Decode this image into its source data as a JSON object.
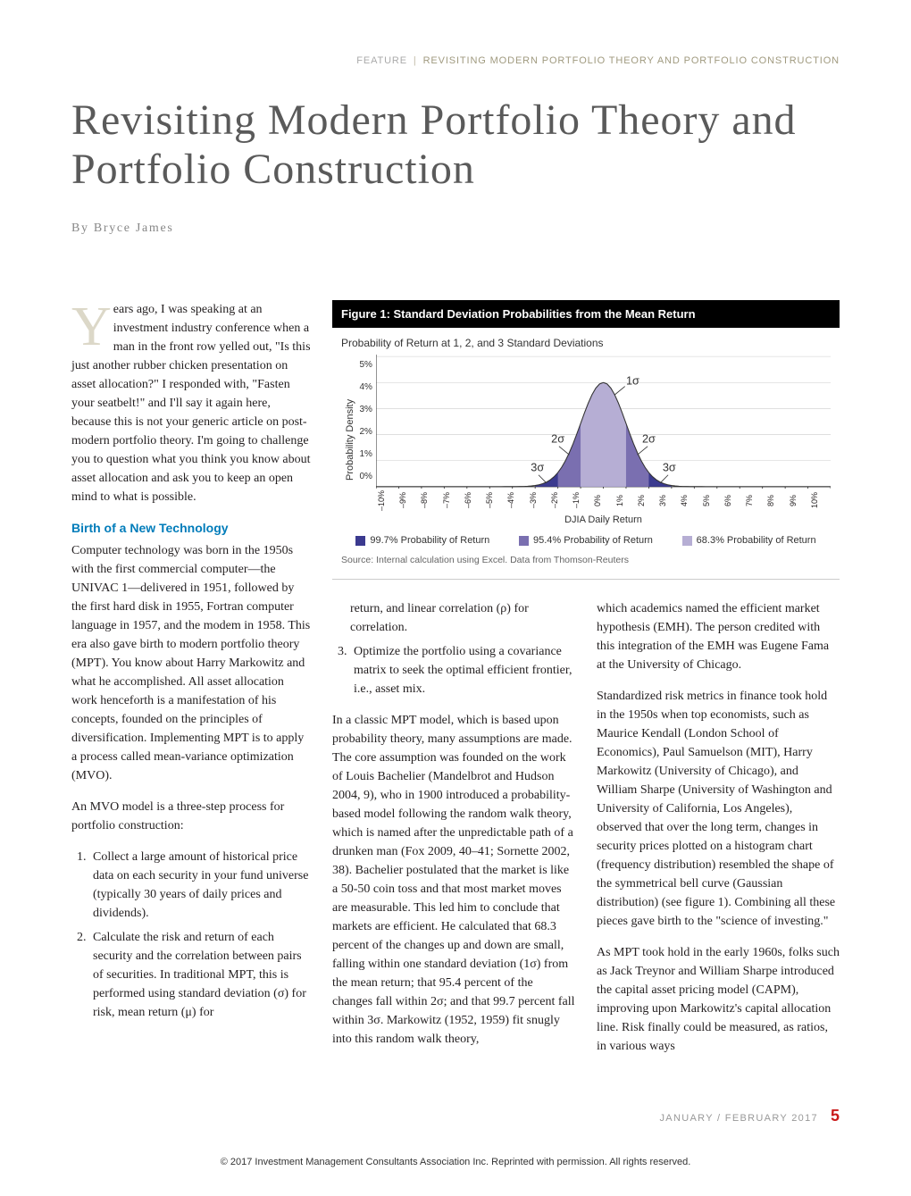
{
  "header": {
    "feature_label": "FEATURE",
    "section_title": "REVISITING MODERN PORTFOLIO THEORY  AND PORTFOLIO CONSTRUCTION"
  },
  "title": "Revisiting Modern Portfolio Theory and Portfolio Construction",
  "byline": "By Bryce James",
  "intro": {
    "dropcap": "Y",
    "text": "ears ago, I was speaking at an investment industry conference when a man in the front row yelled out, \"Is this just another rubber chicken presentation on asset allocation?\" I responded with, \"Fasten your seatbelt!\" and I'll say it again here, because this is not your generic article on post-modern portfolio theory. I'm going to challenge you to question what you think you know about asset allocation and ask you to keep an open mind to what is possible."
  },
  "section_birth_header": "Birth of a New Technology",
  "p_birth": "Computer technology was born in the 1950s with the first commercial computer—the UNIVAC 1—delivered in 1951, followed by the first hard disk in 1955, Fortran computer language in 1957, and the modem in 1958. This era also gave birth to modern portfolio theory (MPT). You know about Harry Markowitz and what he accomplished. All asset allocation work henceforth is a manifestation of his concepts, founded on the principles of diversification. Implementing MPT is to apply a process called mean-variance optimization (MVO).",
  "p_mvo_intro": "An MVO model is a three-step process for portfolio construction:",
  "steps": [
    "Collect a large amount of historical price data on each security in your fund universe (typically 30 years of daily prices and dividends).",
    "Calculate the risk and return of each security and the correlation between pairs of securities. In traditional MPT, this is performed using standard deviation (σ) for risk, mean return (μ) for"
  ],
  "steps_col2": [
    "return, and linear correlation (ρ) for correlation.",
    "Optimize the portfolio using a covariance matrix to seek the optimal efficient frontier, i.e., asset mix."
  ],
  "steps_col2_start": 3,
  "p_classic": "In a classic MPT model, which is based upon probability theory, many assumptions are made. The core assumption was founded on the work of Louis Bachelier (Mandelbrot and Hudson 2004, 9), who in 1900 introduced a probability-based model following the random walk theory, which is named after the unpredictable path of a drunken man (Fox 2009, 40–41; Sornette 2002, 38). Bachelier postulated that the market is like a 50-50 coin toss and that most market moves are measurable. This led him to conclude that markets are efficient. He calculated that 68.3 percent of the changes up and down are small, falling within one standard deviation (1σ) from the mean return; that 95.4 percent of the changes fall within 2σ; and that 99.7 percent fall within 3σ. Markowitz (1952, 1959) fit snugly into this random walk theory,",
  "p_emh": "which academics named the efficient market hypothesis (EMH). The person credited with this integration of the EMH was Eugene Fama at the University of Chicago.",
  "p_standardized": "Standardized risk metrics in finance took hold in the 1950s when top economists, such as Maurice Kendall (London School of Economics), Paul Samuelson (MIT), Harry Markowitz (University of Chicago), and William Sharpe (University of Washington and University of California, Los Angeles), observed that over the long term, changes in security prices plotted on a histogram chart (frequency distribution) resembled the shape of the symmetrical bell curve (Gaussian distribution) (see figure 1). Combining all these pieces gave birth to the \"science of investing.\"",
  "p_capm": "As MPT took hold in the early 1960s, folks such as Jack Treynor and William Sharpe introduced the capital asset pricing model (CAPM), improving upon Markowitz's capital allocation line. Risk finally could be measured, as ratios, in various ways",
  "figure": {
    "title": "Figure 1: Standard Deviation Probabilities from the Mean Return",
    "subtitle": "Probability of Return at 1, 2, and 3 Standard Deviations",
    "y_label": "Probability Density",
    "y_ticks": [
      "5%",
      "4%",
      "3%",
      "2%",
      "1%",
      "0%"
    ],
    "x_label": "DJIA Daily Return",
    "x_ticks": [
      "–10%",
      "–9%",
      "–8%",
      "–7%",
      "–6%",
      "–5%",
      "–4%",
      "–3%",
      "–2%",
      "–1%",
      "0%",
      "1%",
      "2%",
      "3%",
      "4%",
      "5%",
      "6%",
      "7%",
      "8%",
      "9%",
      "10%"
    ],
    "legend": [
      {
        "label": "99.7% Probability of Return",
        "color": "#3b3a8f"
      },
      {
        "label": "95.4% Probability of Return",
        "color": "#7a6fb0"
      },
      {
        "label": "68.3% Probability of Return",
        "color": "#b6aed4"
      }
    ],
    "source": "Source: Internal calculation using Excel. Data from Thomson-Reuters",
    "chart": {
      "ylim": [
        0,
        5
      ],
      "xlim": [
        -10,
        10
      ],
      "sigma_annotations": {
        "1": "1σ",
        "2": "2σ",
        "3": "3σ"
      },
      "regions": [
        {
          "name": "3sigma",
          "x_start": -3.0,
          "x_end": 3.0,
          "fill": "#3b3a8f"
        },
        {
          "name": "2sigma",
          "x_start": -2.0,
          "x_end": 2.0,
          "fill": "#7a6fb0"
        },
        {
          "name": "1sigma",
          "x_start": -1.0,
          "x_end": 1.0,
          "fill": "#b6aed4"
        }
      ],
      "bell_peak_y": 4.0,
      "background_color": "#ffffff",
      "axis_color": "#333333",
      "grid_color": "#cccccc",
      "annotation_color": "#333333",
      "label_fontsize": 11
    }
  },
  "footer": {
    "date": "JANUARY / FEBRUARY 2017",
    "page": "5"
  },
  "copyright": "© 2017 Investment Management Consultants Association Inc. Reprinted with permission. All rights reserved."
}
